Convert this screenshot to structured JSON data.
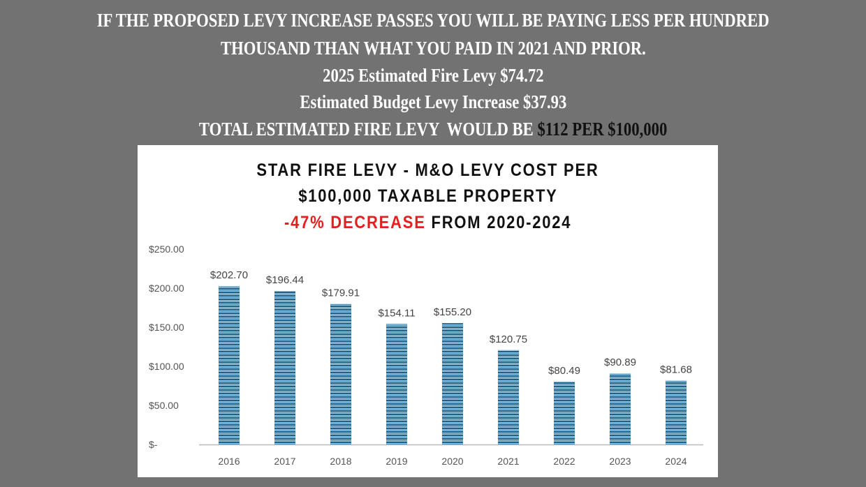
{
  "header": {
    "line1": "IF THE PROPOSED LEVY INCREASE PASSES YOU WILL BE PAYING LESS PER HUNDRED",
    "line2": "THOUSAND THAN WHAT YOU PAID IN 2021 AND PRIOR.",
    "line3": "2025 Estimated Fire Levy $74.72",
    "line4": "Estimated Budget Levy Increase $37.93",
    "line5_prefix": "TOTAL ESTIMATED FIRE LEVY  WOULD BE ",
    "line5_highlight": "$112 PER $100,000"
  },
  "chart_data": {
    "type": "bar",
    "title_line1": "STAR FIRE LEVY - M&O LEVY COST PER",
    "title_line2": "$100,000 TAXABLE PROPERTY",
    "title_line3_red": "-47% DECREASE",
    "title_line3_rest": " FROM 2020-2024",
    "categories": [
      "2016",
      "2017",
      "2018",
      "2019",
      "2020",
      "2021",
      "2022",
      "2023",
      "2024"
    ],
    "values": [
      202.7,
      196.44,
      179.91,
      154.11,
      155.2,
      120.75,
      80.49,
      90.89,
      81.68
    ],
    "data_labels": [
      "$202.70",
      "$196.44",
      "$179.91",
      "$154.11",
      "$155.20",
      "$120.75",
      "$80.49",
      "$90.89",
      "$81.68"
    ],
    "yticks": [
      0,
      50,
      100,
      150,
      200,
      250
    ],
    "ytick_labels": [
      "$-",
      "$50.00",
      "$100.00",
      "$150.00",
      "$200.00",
      "$250.00"
    ],
    "ylim": [
      0,
      250
    ],
    "xlabel": "",
    "ylabel": "",
    "grid": false,
    "colors": {
      "bar_dark": "#1f5f86",
      "bar_light": "#9cc8e0",
      "title_red": "#e32020"
    }
  }
}
